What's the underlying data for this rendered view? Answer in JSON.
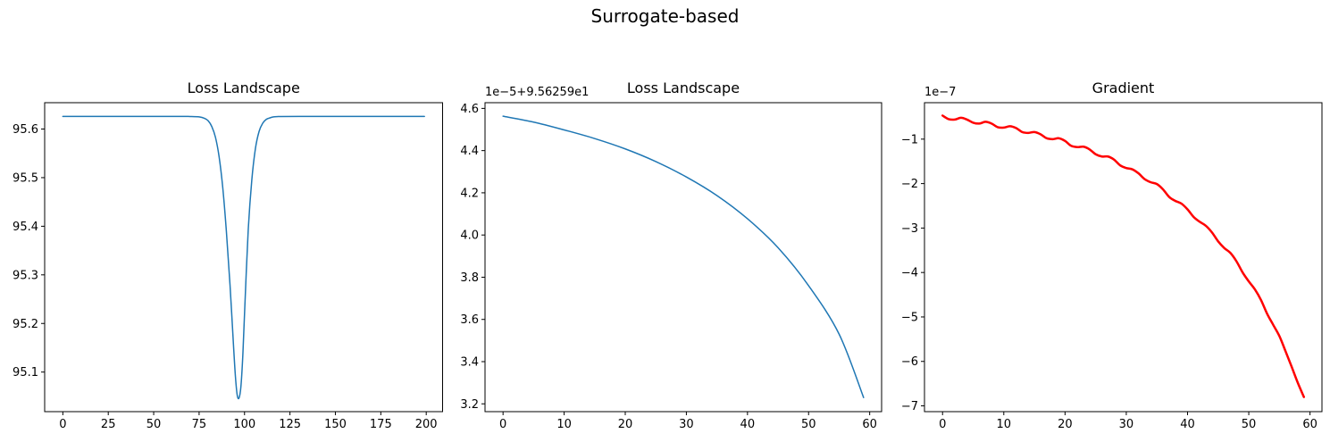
{
  "figure": {
    "suptitle": "Surrogate-based"
  },
  "chart_data": [
    {
      "type": "line",
      "title": "Loss  Landscape",
      "xlabel": "",
      "ylabel": "",
      "xlim": [
        -10,
        209
      ],
      "ylim": [
        95.0186,
        95.6542
      ],
      "xticks": [
        0,
        25,
        50,
        75,
        100,
        125,
        150,
        175,
        200
      ],
      "xtick_labels": [
        "0",
        "25",
        "50",
        "75",
        "100",
        "125",
        "150",
        "175",
        "200"
      ],
      "yticks": [
        95.1,
        95.2,
        95.3,
        95.4,
        95.5,
        95.6
      ],
      "ytick_labels": [
        "95.1",
        "95.2",
        "95.3",
        "95.4",
        "95.5",
        "95.6"
      ],
      "offset_text": "",
      "series": [
        {
          "color": "#1f77b4",
          "linewidth": 1.5,
          "x": [
            0,
            60,
            70,
            75,
            78,
            80,
            82,
            84,
            86,
            88,
            90,
            92,
            94,
            95,
            96,
            97,
            98,
            99,
            100,
            102,
            104,
            106,
            108,
            110,
            112,
            114,
            116,
            118,
            120,
            130,
            150,
            199
          ],
          "y": [
            95.626,
            95.626,
            95.6258,
            95.625,
            95.622,
            95.617,
            95.605,
            95.583,
            95.543,
            95.48,
            95.39,
            95.28,
            95.15,
            95.09,
            95.052,
            95.047,
            95.07,
            95.13,
            95.22,
            95.39,
            95.495,
            95.56,
            95.595,
            95.612,
            95.62,
            95.623,
            95.625,
            95.6256,
            95.6258,
            95.626,
            95.626,
            95.626
          ]
        }
      ]
    },
    {
      "type": "line",
      "title": "Loss  Landscape",
      "xlabel": "",
      "ylabel": "",
      "xlim": [
        -2.95,
        61.95
      ],
      "ylim": [
        3.163,
        4.627
      ],
      "xticks": [
        0,
        10,
        20,
        30,
        40,
        50,
        60
      ],
      "xtick_labels": [
        "0",
        "10",
        "20",
        "30",
        "40",
        "50",
        "60"
      ],
      "yticks": [
        3.2,
        3.4,
        3.6,
        3.8,
        4.0,
        4.2,
        4.4,
        4.6
      ],
      "ytick_labels": [
        "3.2",
        "3.4",
        "3.6",
        "3.8",
        "4.0",
        "4.2",
        "4.4",
        "4.6"
      ],
      "offset_text": "1e−5+9.56259e1",
      "series": [
        {
          "color": "#1f77b4",
          "linewidth": 1.5,
          "x": [
            0,
            5,
            10,
            15,
            20,
            25,
            30,
            35,
            40,
            45,
            50,
            55,
            59
          ],
          "y": [
            4.563,
            4.535,
            4.498,
            4.457,
            4.408,
            4.348,
            4.275,
            4.187,
            4.077,
            3.94,
            3.76,
            3.53,
            3.23
          ]
        }
      ]
    },
    {
      "type": "line",
      "title": "Gradient",
      "xlabel": "",
      "ylabel": "",
      "xlim": [
        -2.95,
        61.95
      ],
      "ylim": [
        -7.13,
        -0.18
      ],
      "xticks": [
        0,
        10,
        20,
        30,
        40,
        50,
        60
      ],
      "xtick_labels": [
        "0",
        "10",
        "20",
        "30",
        "40",
        "50",
        "60"
      ],
      "yticks": [
        -7,
        -6,
        -5,
        -4,
        -3,
        -2,
        -1
      ],
      "ytick_labels": [
        "−7",
        "−6",
        "−5",
        "−4",
        "−3",
        "−2",
        "−1"
      ],
      "offset_text": "1e−7",
      "series": [
        {
          "color": "#ff0000",
          "linewidth": 2.5,
          "x": [
            0,
            1,
            2,
            3,
            4,
            5,
            6,
            7,
            8,
            9,
            10,
            11,
            12,
            13,
            14,
            15,
            16,
            17,
            18,
            19,
            20,
            21,
            22,
            23,
            24,
            25,
            26,
            27,
            28,
            29,
            30,
            31,
            32,
            33,
            34,
            35,
            36,
            37,
            38,
            39,
            40,
            41,
            42,
            43,
            44,
            45,
            46,
            47,
            48,
            49,
            50,
            51,
            52,
            53,
            54,
            55,
            56,
            57,
            58,
            59
          ],
          "y": [
            -0.47,
            -0.55,
            -0.56,
            -0.52,
            -0.56,
            -0.63,
            -0.65,
            -0.61,
            -0.65,
            -0.73,
            -0.74,
            -0.71,
            -0.75,
            -0.84,
            -0.86,
            -0.84,
            -0.89,
            -0.98,
            -1.0,
            -0.98,
            -1.04,
            -1.15,
            -1.18,
            -1.17,
            -1.23,
            -1.34,
            -1.39,
            -1.39,
            -1.46,
            -1.59,
            -1.65,
            -1.68,
            -1.77,
            -1.9,
            -1.97,
            -2.01,
            -2.13,
            -2.3,
            -2.39,
            -2.45,
            -2.58,
            -2.75,
            -2.86,
            -2.95,
            -3.1,
            -3.3,
            -3.45,
            -3.56,
            -3.75,
            -4.0,
            -4.2,
            -4.38,
            -4.62,
            -4.93,
            -5.18,
            -5.43,
            -5.77,
            -6.12,
            -6.48,
            -6.8
          ]
        }
      ]
    }
  ]
}
